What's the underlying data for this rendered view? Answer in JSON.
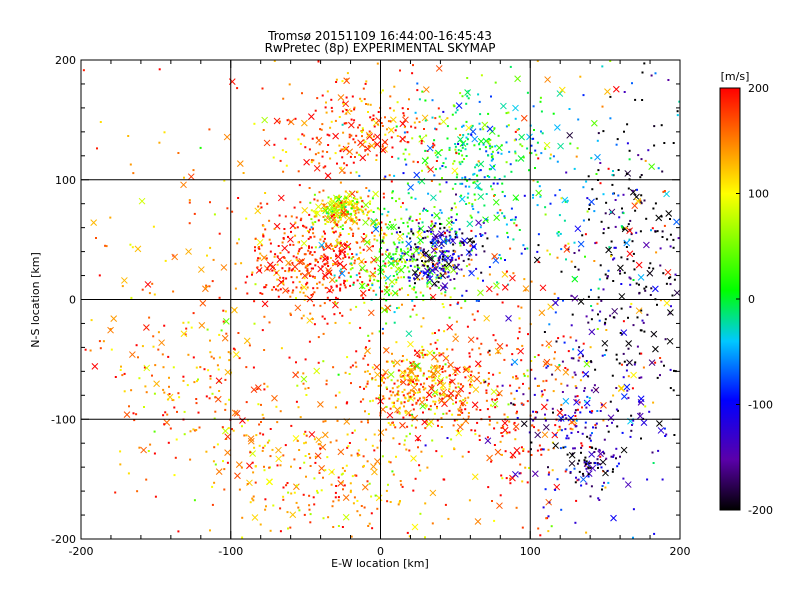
{
  "chart_data": {
    "type": "scatter",
    "title": "Tromsø 20151109 16:44:00-16:45:43",
    "subtitle": "RwPretec (8p) EXPERIMENTAL SKYMAP",
    "xlabel": "E-W location [km]",
    "ylabel": "N-S location [km]",
    "xlim": [
      -200,
      200
    ],
    "ylim": [
      -200,
      200
    ],
    "xticks": [
      "-200",
      "-100",
      "0",
      "100",
      "200"
    ],
    "yticks": [
      "-200",
      "-100",
      "0",
      "100",
      "200"
    ],
    "grid": true,
    "colorbar": {
      "label": "[m/s]",
      "range": [
        -200,
        200
      ],
      "ticks": [
        "-200",
        "-100",
        "0",
        "100",
        "200"
      ],
      "colormap": [
        "#000000",
        "#5a00aa",
        "#0000ff",
        "#00c8ff",
        "#00ff00",
        "#ffff00",
        "#ff0000"
      ]
    },
    "markers": [
      "point",
      "x"
    ],
    "clusters": [
      {
        "x": -25,
        "y": 75,
        "sx": 10,
        "sy": 6,
        "n": 220,
        "v": 90
      },
      {
        "x": -45,
        "y": 35,
        "sx": 22,
        "sy": 22,
        "n": 380,
        "v": 185
      },
      {
        "x": 15,
        "y": 35,
        "sx": 22,
        "sy": 25,
        "n": 280,
        "v": 40
      },
      {
        "x": 40,
        "y": 40,
        "sx": 15,
        "sy": 15,
        "n": 220,
        "v": -150
      },
      {
        "x": 170,
        "y": 30,
        "sx": 25,
        "sy": 60,
        "n": 260,
        "v": -200
      },
      {
        "x": 60,
        "y": 120,
        "sx": 20,
        "sy": 30,
        "n": 200,
        "v": 0
      },
      {
        "x": -15,
        "y": 140,
        "sx": 25,
        "sy": 20,
        "n": 220,
        "v": 175
      },
      {
        "x": 25,
        "y": -70,
        "sx": 22,
        "sy": 15,
        "n": 320,
        "v": 135
      },
      {
        "x": 80,
        "y": -90,
        "sx": 40,
        "sy": 40,
        "n": 300,
        "v": 190
      },
      {
        "x": 140,
        "y": -100,
        "sx": 30,
        "sy": 40,
        "n": 200,
        "v": -130
      },
      {
        "x": 140,
        "y": -135,
        "sx": 12,
        "sy": 10,
        "n": 60,
        "v": -195
      },
      {
        "x": -120,
        "y": -70,
        "sx": 40,
        "sy": 40,
        "n": 200,
        "v": 160
      },
      {
        "x": -40,
        "y": -150,
        "sx": 40,
        "sy": 30,
        "n": 220,
        "v": 140
      },
      {
        "x": 100,
        "y": 80,
        "sx": 50,
        "sy": 50,
        "n": 250,
        "v": -40
      },
      {
        "x": 0,
        "y": 0,
        "sx": 120,
        "sy": 120,
        "n": 600,
        "v": 150
      }
    ]
  }
}
